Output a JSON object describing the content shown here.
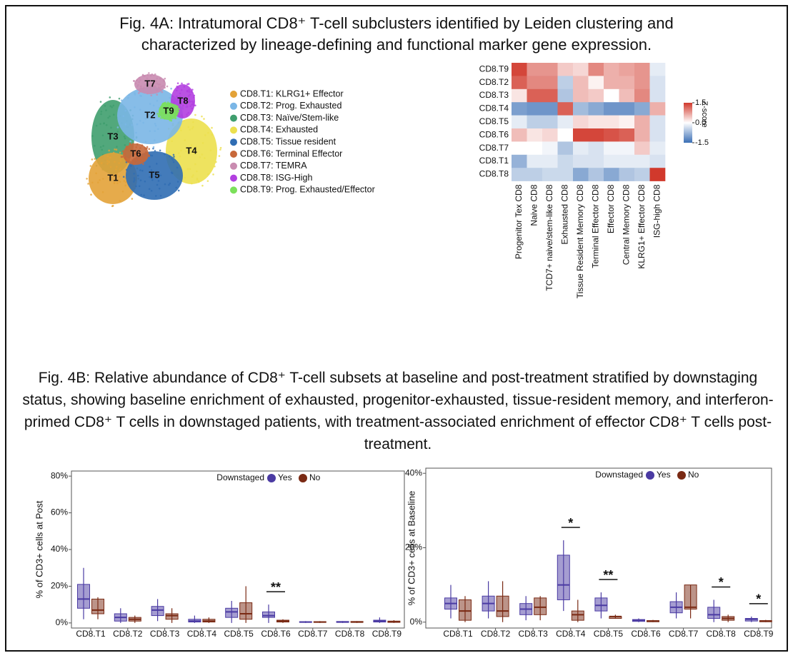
{
  "figure_captions": [
    "Fig. 4A: Intratumoral CD8⁺ T-cell subclusters identified by Leiden clustering and characterized by lineage-defining and functional marker gene expression.",
    "Fig. 4B: Relative abundance of CD8⁺ T-cell subsets at baseline and post-treatment stratified by downstaging status, showing baseline enrichment of exhausted, progenitor-exhausted, tissue-resident memory, and interferon-primed CD8⁺ T cells in downstaged patients, with treatment-associated enrichment of effector CD8⁺ T cells post-treatment."
  ],
  "chart_data": [
    {
      "type": "umap",
      "clusters": [
        {
          "label": "T1",
          "name": "CD8.T1: KLRG1+ Effector",
          "color": "#e3a237"
        },
        {
          "label": "T2",
          "name": "CD8.T2: Prog. Exhausted",
          "color": "#7ab6e6"
        },
        {
          "label": "T3",
          "name": "CD8.T3: Naïve/Stem-like",
          "color": "#3f9e6e"
        },
        {
          "label": "T4",
          "name": "CD8.T4: Exhausted",
          "color": "#ece04e"
        },
        {
          "label": "T5",
          "name": "CD8.T5: Tissue resident",
          "color": "#2f6db3"
        },
        {
          "label": "T6",
          "name": "CD8.T6: Terminal Effector",
          "color": "#c8683a"
        },
        {
          "label": "T7",
          "name": "CD8.T7: TEMRA",
          "color": "#c98bb0"
        },
        {
          "label": "T8",
          "name": "CD8.T8: ISG-High",
          "color": "#b23fe0"
        },
        {
          "label": "T9",
          "name": "CD8.T9: Prog. Exhausted/Effector",
          "color": "#7be05a"
        }
      ]
    },
    {
      "type": "heatmap",
      "rows": [
        "CD8.T9",
        "CD8.T2",
        "CD8.T3",
        "CD8.T4",
        "CD8.T5",
        "CD8.T6",
        "CD8.T7",
        "CD8.T1",
        "CD8.T8"
      ],
      "columns": [
        "Progenitor Tex CD8",
        "Naive CD8",
        "TCD7+ naive/stem-like CD8",
        "Exhausted CD8",
        "Tissue Resident Memory CD8",
        "Terminal Effector CD8",
        "Effector CD8",
        "Central Memory CD8",
        "KLRG1+ Effector CD8",
        "ISG-high CD8"
      ],
      "values": [
        [
          1.4,
          0.8,
          0.8,
          0.4,
          0.3,
          0.9,
          0.6,
          0.7,
          0.8,
          -0.2
        ],
        [
          1.2,
          0.9,
          0.9,
          -0.5,
          0.5,
          0.1,
          0.6,
          0.6,
          0.8,
          -0.3
        ],
        [
          0.2,
          1.2,
          1.2,
          -0.6,
          0.5,
          0.4,
          0.0,
          0.5,
          0.9,
          -0.3
        ],
        [
          -1.0,
          -1.1,
          -1.1,
          1.2,
          -0.7,
          -0.9,
          -1.1,
          -1.1,
          -0.9,
          0.6
        ],
        [
          -0.2,
          -0.5,
          -0.5,
          -0.2,
          0.3,
          0.2,
          0.2,
          0.1,
          0.6,
          -0.3
        ],
        [
          0.5,
          0.2,
          0.3,
          0.0,
          1.4,
          1.4,
          1.3,
          1.2,
          0.6,
          -0.3
        ],
        [
          0.0,
          0.0,
          -0.1,
          -0.6,
          -0.2,
          -0.3,
          -0.1,
          -0.1,
          0.4,
          -0.2
        ],
        [
          -0.8,
          -0.2,
          -0.2,
          -0.4,
          -0.3,
          -0.3,
          -0.2,
          -0.2,
          -0.2,
          -0.3
        ],
        [
          -0.5,
          -0.5,
          -0.4,
          -0.4,
          -0.9,
          -0.6,
          -0.9,
          -0.6,
          -0.5,
          1.5
        ]
      ],
      "colorbar_title": "Z-score",
      "zlim": [
        -1.5,
        1.5
      ],
      "zticks": [
        1.5,
        {
          "value": 0,
          "label": "0.0"
        },
        -1.5
      ],
      "colorscale": [
        "#3a6fb5",
        "#ffffff",
        "#d1392c"
      ]
    },
    {
      "type": "box",
      "ylabel": "% of CD3+ cells at Post",
      "categories": [
        "CD8.T1",
        "CD8.T2",
        "CD8.T3",
        "CD8.T4",
        "CD8.T5",
        "CD8.T6",
        "CD8.T7",
        "CD8.T8",
        "CD8.T9"
      ],
      "ylim": [
        -2,
        82
      ],
      "yticks": [
        {
          "value": 0,
          "label": "0%"
        },
        {
          "value": 20,
          "label": "20%"
        },
        {
          "value": 40,
          "label": "40%"
        },
        {
          "value": 60,
          "label": "60%"
        },
        {
          "value": 80,
          "label": "80%"
        }
      ],
      "legend_title": "Downstaged",
      "series": [
        {
          "name": "Yes",
          "color": "#4b3ba3",
          "boxes": [
            {
              "min": 2,
              "q1": 8,
              "median": 13,
              "q3": 21,
              "max": 30
            },
            {
              "min": 0,
              "q1": 1,
              "median": 3,
              "q3": 5,
              "max": 8
            },
            {
              "min": 1,
              "q1": 4,
              "median": 7,
              "q3": 9,
              "max": 13
            },
            {
              "min": 0,
              "q1": 0.5,
              "median": 1,
              "q3": 2,
              "max": 4
            },
            {
              "min": 0,
              "q1": 3,
              "median": 6,
              "q3": 8,
              "max": 12
            },
            {
              "min": 0,
              "q1": 3,
              "median": 4,
              "q3": 6,
              "max": 10
            },
            {
              "min": 0,
              "q1": 0.3,
              "median": 0.5,
              "q3": 0.7,
              "max": 1
            },
            {
              "min": 0,
              "q1": 0.3,
              "median": 0.5,
              "q3": 0.8,
              "max": 1
            },
            {
              "min": 0,
              "q1": 0.5,
              "median": 1,
              "q3": 1.5,
              "max": 3
            }
          ]
        },
        {
          "name": "No",
          "color": "#7a2a14",
          "boxes": [
            {
              "min": 2,
              "q1": 5,
              "median": 7,
              "q3": 13,
              "max": 14
            },
            {
              "min": 0,
              "q1": 1,
              "median": 2,
              "q3": 3,
              "max": 4
            },
            {
              "min": 0,
              "q1": 2,
              "median": 4,
              "q3": 5,
              "max": 8
            },
            {
              "min": 0,
              "q1": 0.5,
              "median": 1,
              "q3": 2,
              "max": 3
            },
            {
              "min": 0,
              "q1": 2,
              "median": 5,
              "q3": 11,
              "max": 20
            },
            {
              "min": 0,
              "q1": 0.5,
              "median": 1,
              "q3": 1.5,
              "max": 2
            },
            {
              "min": 0,
              "q1": 0.3,
              "median": 0.5,
              "q3": 0.7,
              "max": 1
            },
            {
              "min": 0,
              "q1": 0.3,
              "median": 0.5,
              "q3": 0.8,
              "max": 1
            },
            {
              "min": 0,
              "q1": 0.3,
              "median": 0.6,
              "q3": 1,
              "max": 1.5
            }
          ]
        }
      ],
      "annotations": [
        {
          "text": "**",
          "category": "CD8.T6"
        }
      ]
    },
    {
      "type": "box",
      "ylabel": "% of CD3+ cells at Baseline",
      "categories": [
        "CD8.T1",
        "CD8.T2",
        "CD8.T3",
        "CD8.T4",
        "CD8.T5",
        "CD8.T6",
        "CD8.T7",
        "CD8.T8",
        "CD8.T9"
      ],
      "ylim": [
        -1.2,
        41
      ],
      "yticks": [
        {
          "value": 0,
          "label": "0%"
        },
        {
          "value": 20,
          "label": "20%"
        },
        {
          "value": 40,
          "label": "40%"
        }
      ],
      "legend_title": "Downstaged",
      "series": [
        {
          "name": "Yes",
          "color": "#4b3ba3",
          "boxes": [
            {
              "min": 1,
              "q1": 3.5,
              "median": 5,
              "q3": 6.5,
              "max": 10
            },
            {
              "min": 1,
              "q1": 3,
              "median": 5,
              "q3": 7,
              "max": 11
            },
            {
              "min": 0.5,
              "q1": 2,
              "median": 3.5,
              "q3": 5,
              "max": 7
            },
            {
              "min": 3,
              "q1": 6,
              "median": 10,
              "q3": 18,
              "max": 22
            },
            {
              "min": 1,
              "q1": 3,
              "median": 4.5,
              "q3": 6.5,
              "max": 8
            },
            {
              "min": 0,
              "q1": 0.2,
              "median": 0.5,
              "q3": 0.7,
              "max": 1
            },
            {
              "min": 1,
              "q1": 2.5,
              "median": 4,
              "q3": 5.5,
              "max": 8
            },
            {
              "min": 0,
              "q1": 1,
              "median": 2,
              "q3": 4,
              "max": 6
            },
            {
              "min": 0,
              "q1": 0.3,
              "median": 0.8,
              "q3": 1,
              "max": 1.5
            }
          ]
        },
        {
          "name": "No",
          "color": "#7a2a14",
          "boxes": [
            {
              "min": 0,
              "q1": 0.5,
              "median": 3,
              "q3": 6,
              "max": 7
            },
            {
              "min": 0,
              "q1": 1.5,
              "median": 3,
              "q3": 7,
              "max": 11
            },
            {
              "min": 0.5,
              "q1": 2,
              "median": 4,
              "q3": 6.5,
              "max": 7
            },
            {
              "min": 0,
              "q1": 0.5,
              "median": 2,
              "q3": 3,
              "max": 6
            },
            {
              "min": 1,
              "q1": 1,
              "median": 1.5,
              "q3": 1.5,
              "max": 2
            },
            {
              "min": 0,
              "q1": 0.1,
              "median": 0.3,
              "q3": 0.4,
              "max": 0.6
            },
            {
              "min": 1,
              "q1": 3.5,
              "median": 4,
              "q3": 10,
              "max": 10
            },
            {
              "min": 0,
              "q1": 0.5,
              "median": 1,
              "q3": 1.5,
              "max": 2
            },
            {
              "min": 0,
              "q1": 0.1,
              "median": 0.3,
              "q3": 0.4,
              "max": 0.6
            }
          ]
        }
      ],
      "annotations": [
        {
          "text": "*",
          "category": "CD8.T4"
        },
        {
          "text": "**",
          "category": "CD8.T5"
        },
        {
          "text": "*",
          "category": "CD8.T8"
        },
        {
          "text": "*",
          "category": "CD8.T9"
        }
      ]
    }
  ]
}
